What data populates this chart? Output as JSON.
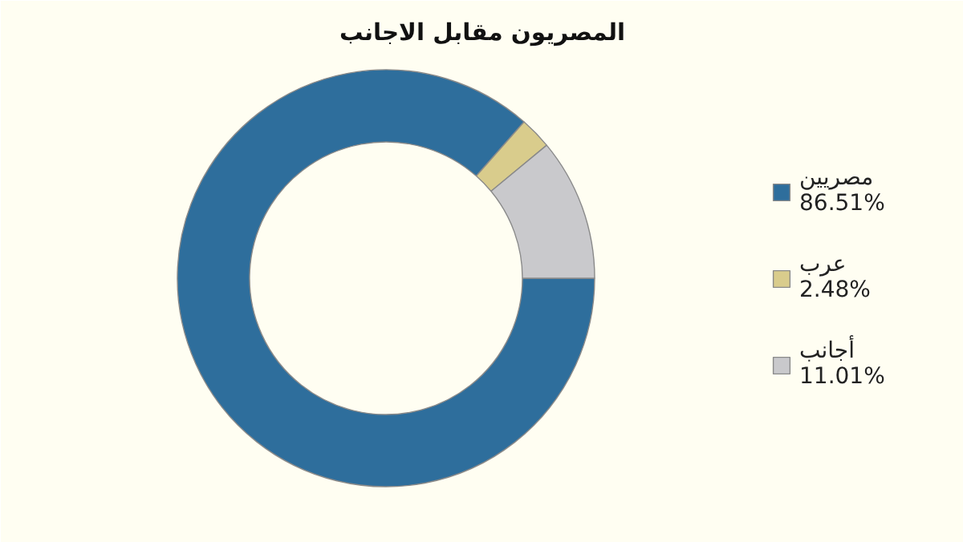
{
  "chart_data": {
    "type": "donut",
    "title": "المصريون مقابل الاجانب",
    "categories": [
      "مصريين",
      "عرب",
      "أجانب"
    ],
    "values": [
      86.51,
      2.48,
      11.01
    ],
    "value_labels": [
      "86.51%",
      "2.48%",
      "11.01%"
    ],
    "colors": [
      "#2e6e9c",
      "#d9cc8c",
      "#c9c9cc"
    ],
    "legend": "right"
  }
}
